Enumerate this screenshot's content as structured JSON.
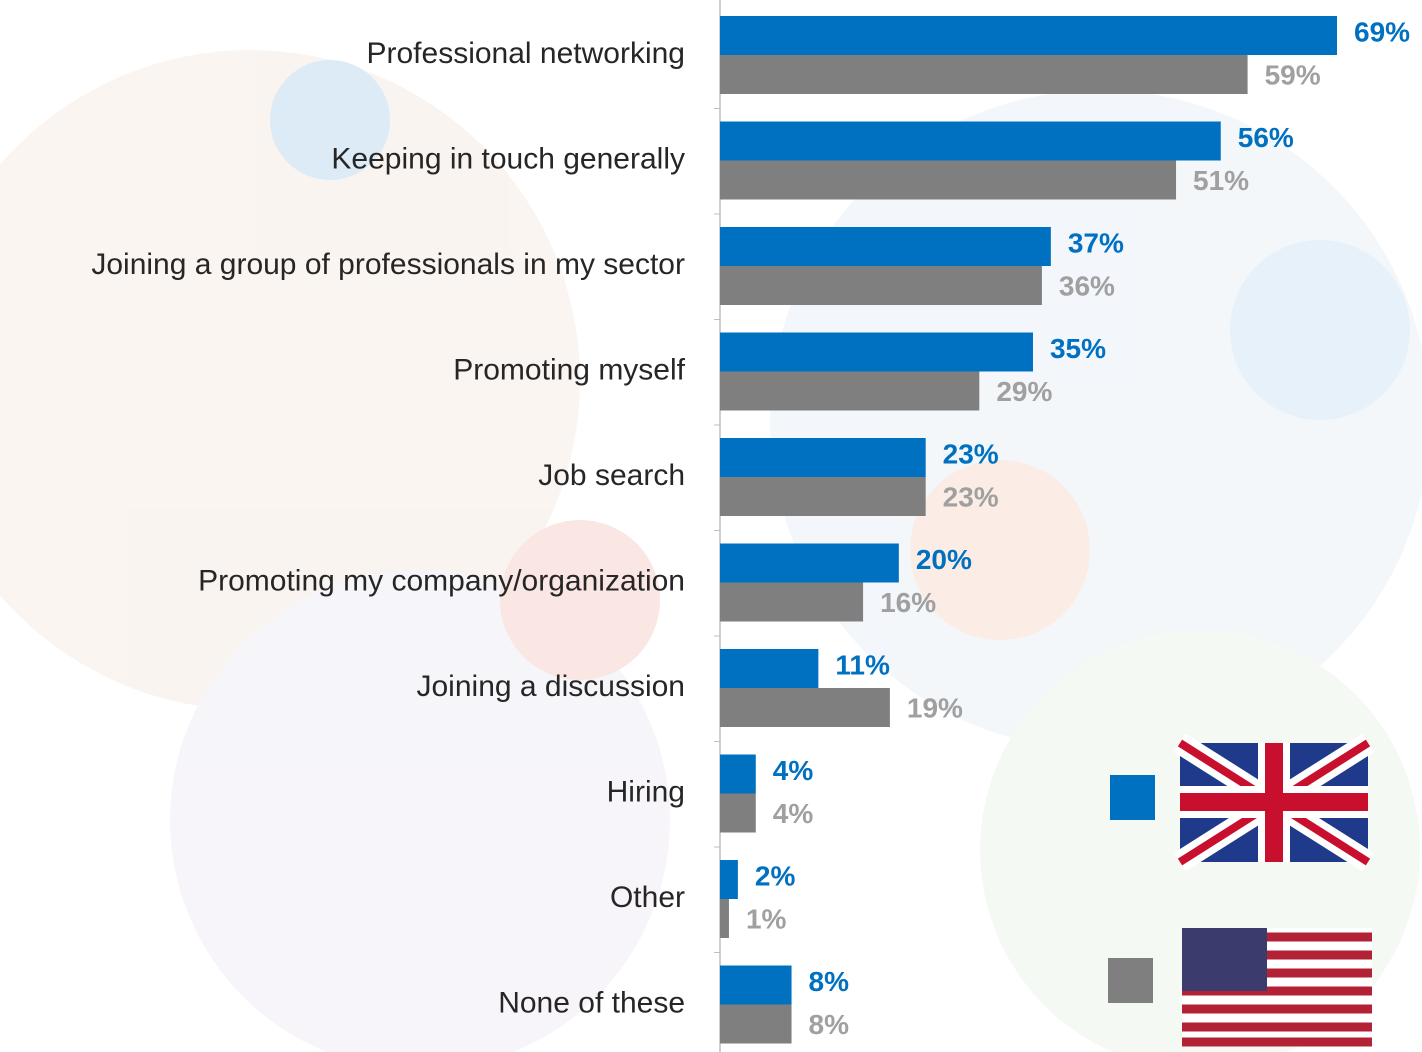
{
  "chart_data": {
    "type": "hbar",
    "categories": [
      "Professional networking",
      "Keeping in touch generally",
      "Joining a group of professionals in my sector",
      "Promoting myself",
      "Job search",
      "Promoting my company/organization",
      "Joining a discussion",
      "Hiring",
      "Other",
      "None of these"
    ],
    "series": [
      {
        "color": "#0070c0",
        "values": [
          69,
          56,
          37,
          35,
          23,
          20,
          11,
          4,
          2,
          8
        ],
        "value_labels": [
          "69%",
          "56%",
          "37%",
          "35%",
          "23%",
          "20%",
          "11%",
          "4%",
          "2%",
          "8%"
        ]
      },
      {
        "color": "#7f7f7f",
        "values": [
          59,
          51,
          36,
          29,
          23,
          16,
          19,
          4,
          1,
          8
        ],
        "value_labels": [
          "59%",
          "51%",
          "36%",
          "29%",
          "23%",
          "16%",
          "19%",
          "4%",
          "1%",
          "8%"
        ]
      }
    ],
    "legend": "bottom-right"
  }
}
